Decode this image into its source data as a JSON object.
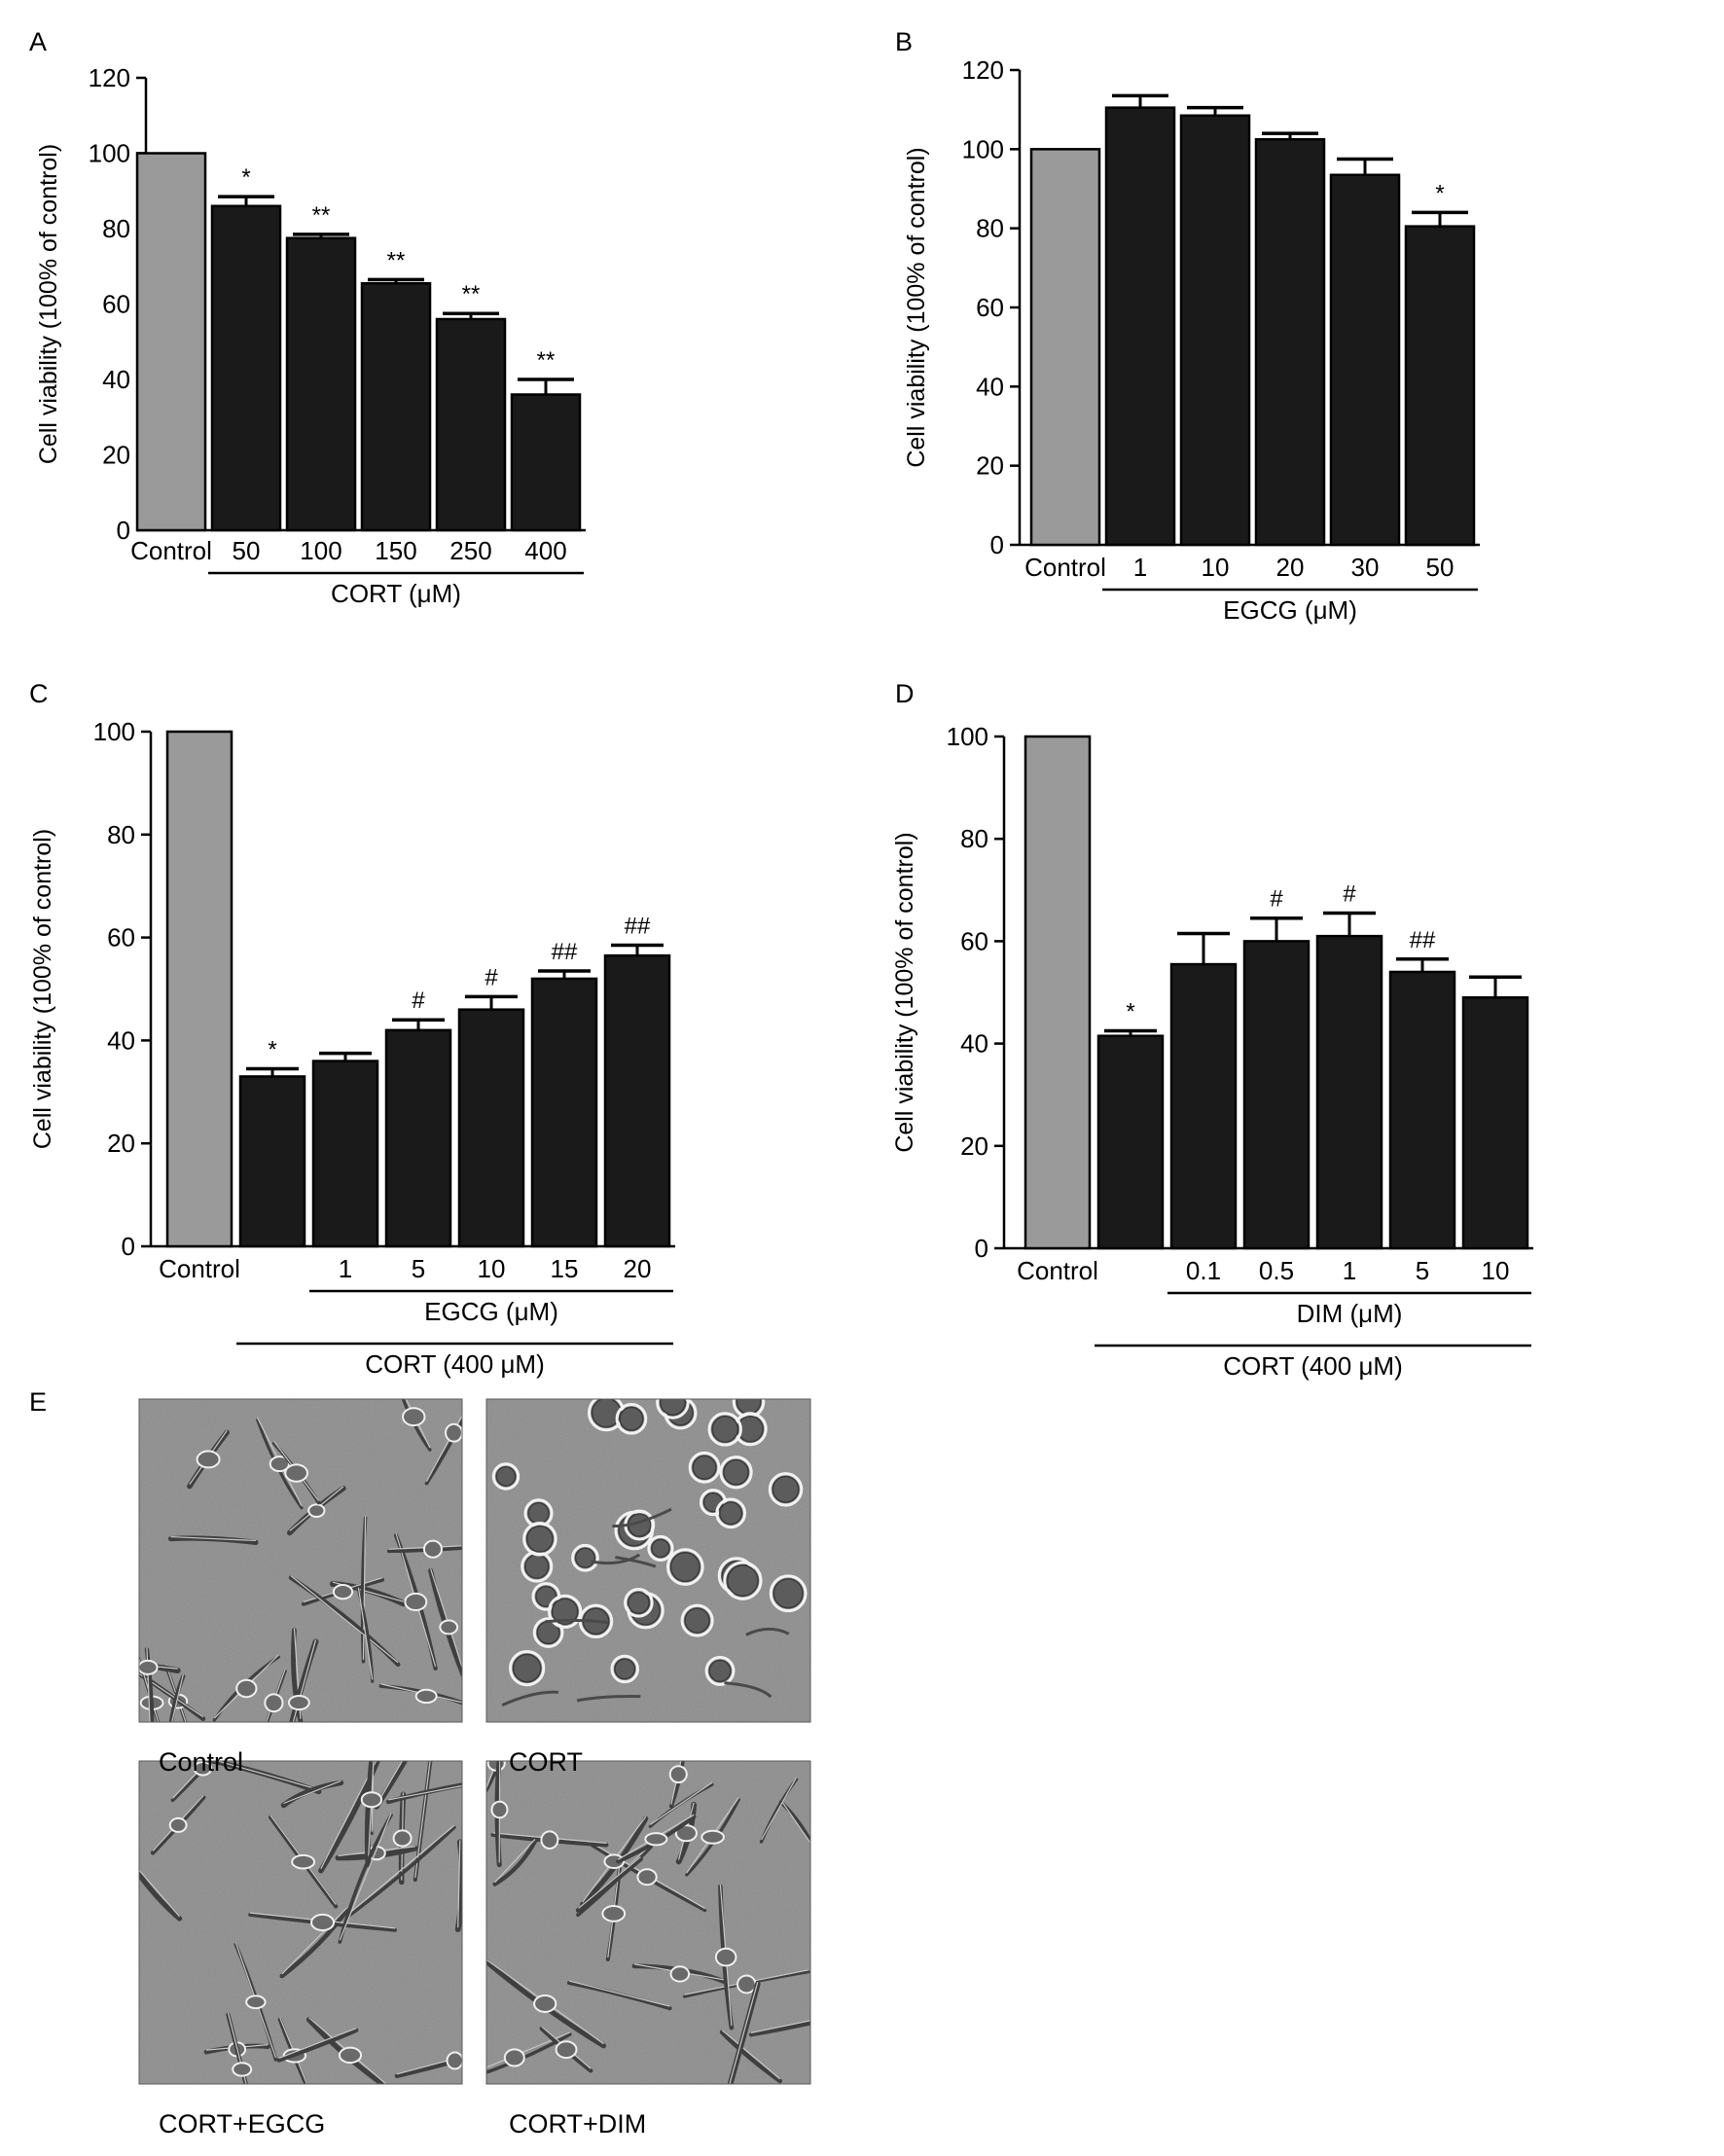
{
  "chart_data": [
    {
      "panel_letter": "A",
      "type": "bar",
      "ylabel": "Cell viability (100% of control)",
      "ylim": [
        0,
        120
      ],
      "yticks": [
        0,
        20,
        40,
        60,
        80,
        100,
        120
      ],
      "categories": [
        "Control",
        "50",
        "100",
        "150",
        "250",
        "400"
      ],
      "values": [
        100,
        86,
        77.5,
        65.5,
        56,
        36
      ],
      "errors": [
        0,
        2.5,
        1,
        1,
        1.5,
        4
      ],
      "annotations": [
        "",
        "*",
        "**",
        "**",
        "**",
        "**"
      ],
      "bar_colors": [
        "#9a9a9a",
        "#1a1a1a",
        "#1a1a1a",
        "#1a1a1a",
        "#1a1a1a",
        "#1a1a1a"
      ],
      "group_labels": [
        {
          "text": "CORT (μM)",
          "from": 1,
          "to": 5,
          "row": 1
        }
      ]
    },
    {
      "panel_letter": "B",
      "type": "bar",
      "ylabel": "Cell viability (100% of control)",
      "ylim": [
        0,
        120
      ],
      "yticks": [
        0,
        20,
        40,
        60,
        80,
        100,
        120
      ],
      "categories": [
        "Control",
        "1",
        "10",
        "20",
        "30",
        "50"
      ],
      "values": [
        100,
        110.5,
        108.5,
        102.5,
        93.5,
        80.5
      ],
      "errors": [
        0,
        3,
        2,
        1.5,
        4,
        3.5
      ],
      "annotations": [
        "",
        "",
        "",
        "",
        "",
        "*"
      ],
      "bar_colors": [
        "#9a9a9a",
        "#1a1a1a",
        "#1a1a1a",
        "#1a1a1a",
        "#1a1a1a",
        "#1a1a1a"
      ],
      "group_labels": [
        {
          "text": "EGCG (μM)",
          "from": 1,
          "to": 5,
          "row": 1
        }
      ]
    },
    {
      "panel_letter": "C",
      "type": "bar",
      "ylabel": "Cell viability (100% of control)",
      "ylim": [
        0,
        100
      ],
      "yticks": [
        0,
        20,
        40,
        60,
        80,
        100
      ],
      "categories": [
        "Control",
        "",
        "1",
        "5",
        "10",
        "15",
        "20"
      ],
      "values": [
        100,
        33,
        36,
        42,
        46,
        52,
        56.5
      ],
      "errors": [
        0,
        1.5,
        1.5,
        2,
        2.5,
        1.5,
        2
      ],
      "annotations": [
        "",
        "*",
        "",
        "#",
        "#",
        "##",
        "##"
      ],
      "bar_colors": [
        "#9a9a9a",
        "#1a1a1a",
        "#1a1a1a",
        "#1a1a1a",
        "#1a1a1a",
        "#1a1a1a",
        "#1a1a1a"
      ],
      "group_labels": [
        {
          "text": "EGCG (μM)",
          "from": 2,
          "to": 6,
          "row": 1
        },
        {
          "text": "CORT (400 μM)",
          "from": 1,
          "to": 6,
          "row": 2
        }
      ]
    },
    {
      "panel_letter": "D",
      "type": "bar",
      "ylabel": "Cell viability (100% of control)",
      "ylim": [
        0,
        100
      ],
      "yticks": [
        0,
        20,
        40,
        60,
        80,
        100
      ],
      "categories": [
        "Control",
        "",
        "0.1",
        "0.5",
        "1",
        "5",
        "10"
      ],
      "values": [
        100,
        41.5,
        55.5,
        60,
        61,
        54,
        49
      ],
      "errors": [
        0,
        1,
        6,
        4.5,
        4.5,
        2.5,
        4
      ],
      "annotations": [
        "",
        "*",
        "",
        "#",
        "#",
        "##",
        ""
      ],
      "bar_colors": [
        "#9a9a9a",
        "#1a1a1a",
        "#1a1a1a",
        "#1a1a1a",
        "#1a1a1a",
        "#1a1a1a",
        "#1a1a1a"
      ],
      "group_labels": [
        {
          "text": "DIM (μM)",
          "from": 2,
          "to": 6,
          "row": 1
        },
        {
          "text": "CORT (400 μM)",
          "from": 1,
          "to": 6,
          "row": 2
        }
      ]
    }
  ],
  "panel_e": {
    "letter": "E",
    "images": [
      {
        "label": "Control",
        "morphology": "elongated-cells"
      },
      {
        "label": "CORT",
        "morphology": "rounded-cells"
      },
      {
        "label": "CORT+EGCG",
        "morphology": "elongated-cells"
      },
      {
        "label": "CORT+DIM",
        "morphology": "elongated-cells"
      }
    ]
  }
}
